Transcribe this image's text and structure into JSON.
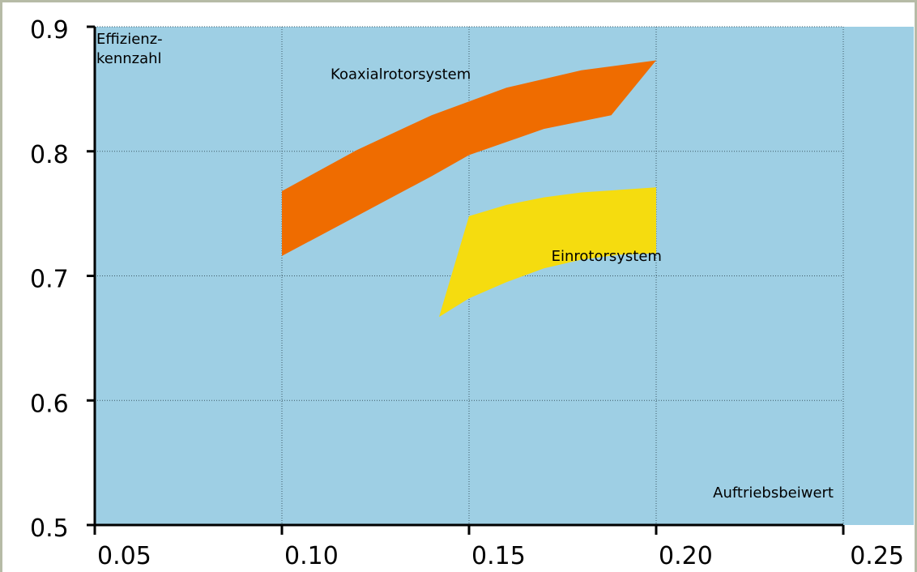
{
  "chart_data": {
    "type": "area",
    "title": "",
    "xlabel": "Auftriebsbeiwert",
    "ylabel_lines": [
      "Effizienz-",
      "kennzahl"
    ],
    "xlim": [
      0.05,
      0.25
    ],
    "ylim": [
      0.5,
      0.9
    ],
    "x_ticks": [
      0.05,
      0.1,
      0.15,
      0.2,
      0.25
    ],
    "x_tick_labels": [
      "0.05",
      "0.10",
      "0.15",
      "0.20",
      "0.25"
    ],
    "y_ticks": [
      0.5,
      0.6,
      0.7,
      0.8,
      0.9
    ],
    "y_tick_labels": [
      "0.5",
      "0.6",
      "0.7",
      "0.8",
      "0.9"
    ],
    "grid": true,
    "background": "#9ecfe4",
    "series": [
      {
        "name": "Koaxialrotorsystem",
        "color": "#ef6c00",
        "label_at": [
          0.113,
          0.858
        ],
        "upper": [
          [
            0.1,
            0.768
          ],
          [
            0.12,
            0.801
          ],
          [
            0.14,
            0.829
          ],
          [
            0.16,
            0.851
          ],
          [
            0.18,
            0.865
          ],
          [
            0.2,
            0.873
          ]
        ],
        "lower": [
          [
            0.1,
            0.716
          ],
          [
            0.12,
            0.748
          ],
          [
            0.14,
            0.78
          ],
          [
            0.15,
            0.797
          ],
          [
            0.17,
            0.818
          ],
          [
            0.188,
            0.829
          ]
        ]
      },
      {
        "name": "Einrotorsystem",
        "color": "#f5dc0f",
        "label_at": [
          0.172,
          0.712
        ],
        "upper": [
          [
            0.15,
            0.748
          ],
          [
            0.16,
            0.757
          ],
          [
            0.17,
            0.763
          ],
          [
            0.18,
            0.767
          ],
          [
            0.19,
            0.769
          ],
          [
            0.2,
            0.771
          ]
        ],
        "lower": [
          [
            0.2,
            0.718
          ],
          [
            0.19,
            0.717
          ],
          [
            0.18,
            0.713
          ],
          [
            0.17,
            0.706
          ],
          [
            0.16,
            0.695
          ],
          [
            0.15,
            0.682
          ],
          [
            0.142,
            0.667
          ]
        ]
      }
    ]
  }
}
